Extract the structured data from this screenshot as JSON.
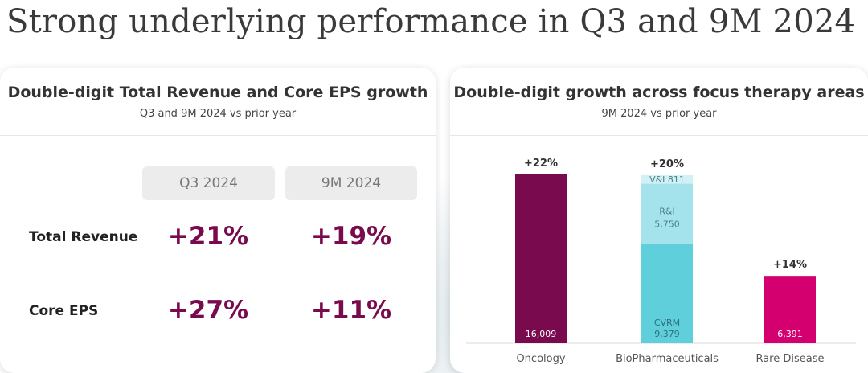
{
  "page_title": "Strong underlying performance in Q3 and 9M 2024",
  "left_card": {
    "title": "Double-digit Total Revenue and Core EPS growth",
    "subtitle": "Q3 and 9M 2024 vs prior year",
    "columns": [
      "Q3 2024",
      "9M 2024"
    ],
    "rows": [
      {
        "label": "Total Revenue",
        "values": [
          "+21%",
          "+19%"
        ]
      },
      {
        "label": "Core EPS",
        "values": [
          "+27%",
          "+11%"
        ]
      }
    ]
  },
  "right_card": {
    "title": "Double-digit growth across focus therapy areas",
    "subtitle": "9M 2024 vs prior year"
  },
  "chart_data": {
    "type": "bar",
    "stacked": true,
    "categories": [
      "Oncology",
      "BioPharmaceuticals",
      "Rare Disease"
    ],
    "growth_labels": [
      "+22%",
      "+20%",
      "+14%"
    ],
    "segments": [
      {
        "category": "Oncology",
        "label": "",
        "value": 16009,
        "value_label": "16,009",
        "color": "#7a0a4e",
        "text_color": "#ffffff"
      },
      {
        "category": "BioPharmaceuticals",
        "label": "CVRM",
        "value": 9379,
        "value_label": "9,379",
        "color": "#5fcfdc",
        "text_color": "#2e6f78"
      },
      {
        "category": "BioPharmaceuticals",
        "label": "R&I",
        "value": 5750,
        "value_label": "5,750",
        "color": "#a4e3ec",
        "text_color": "#4a8088"
      },
      {
        "category": "BioPharmaceuticals",
        "label": "V&I",
        "value": 811,
        "value_label": "811",
        "color": "#d2f1f5",
        "text_color": "#4a8088"
      },
      {
        "category": "Rare Disease",
        "label": "",
        "value": 6391,
        "value_label": "6,391",
        "color": "#d4006f",
        "text_color": "#ffffff"
      }
    ],
    "ylim": [
      0,
      16009
    ],
    "grid": false,
    "legend": "none"
  }
}
